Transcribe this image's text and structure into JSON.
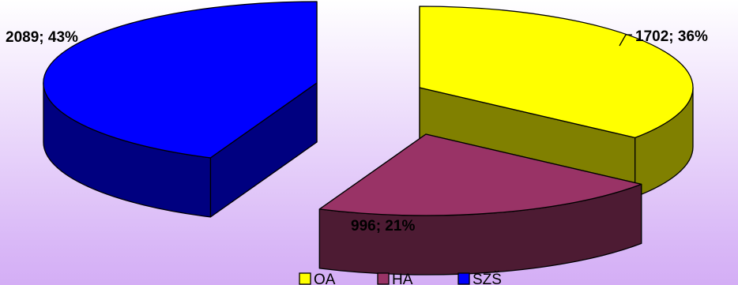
{
  "chart_data": {
    "type": "pie",
    "style": "3d-exploded",
    "categories": [
      "OA",
      "HA",
      "SZŠ"
    ],
    "values": [
      1702,
      996,
      2089
    ],
    "percents": [
      36,
      21,
      43
    ],
    "data_labels": [
      "1702; 36%",
      "996; 21%",
      "2089; 43%"
    ],
    "colors": {
      "OA": {
        "top": "#ffff00",
        "side": "#808000"
      },
      "HA": {
        "top": "#993366",
        "side": "#4d1b33"
      },
      "SZŠ": {
        "top": "#0000ff",
        "side": "#000080"
      }
    },
    "legend": {
      "position": "bottom",
      "entries": [
        "OA",
        "HA",
        "SZŠ"
      ]
    }
  }
}
